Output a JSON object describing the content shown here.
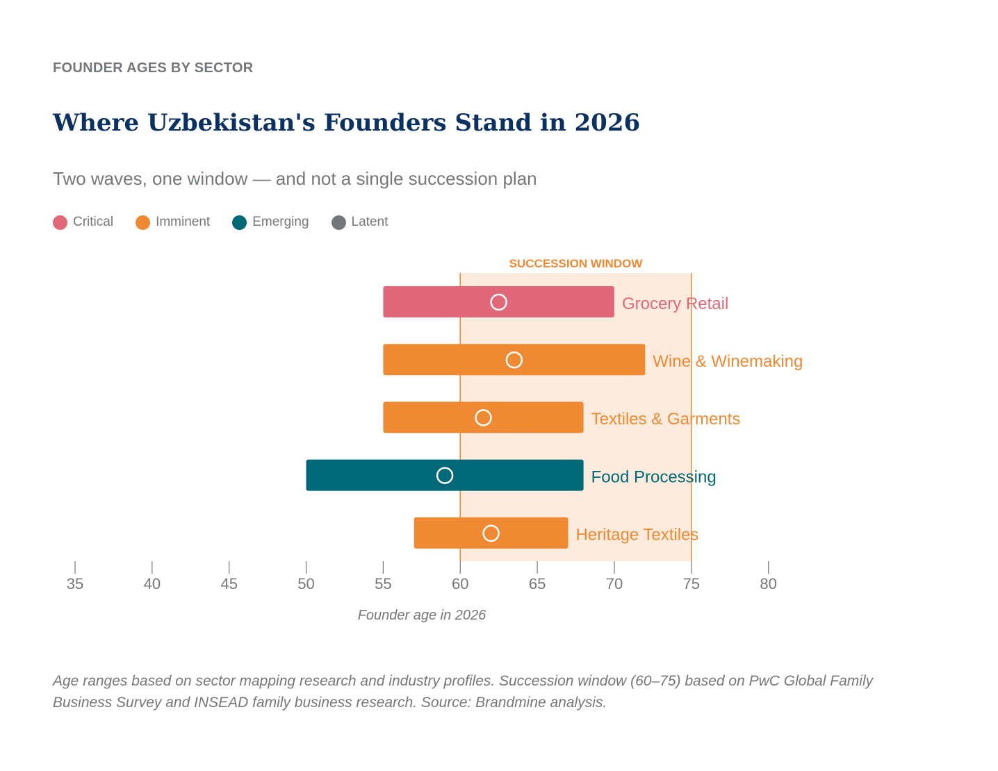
{
  "header": {
    "eyebrow": "FOUNDER AGES BY SECTOR",
    "title": "Where Uzbekistan's Founders Stand in 2026",
    "subtitle": "Two waves, one window — and not a single succession plan"
  },
  "legend": [
    {
      "label": "Critical",
      "color": "#e06878"
    },
    {
      "label": "Imminent",
      "color": "#ef8a33"
    },
    {
      "label": "Emerging",
      "color": "#006876"
    },
    {
      "label": "Latent",
      "color": "#75787b"
    }
  ],
  "chart_data": {
    "type": "range-bar",
    "title": "Where Uzbekistan's Founders Stand in 2026",
    "xlabel": "Founder age in 2026",
    "xlim": [
      35,
      80
    ],
    "xticks": [
      "35",
      "40",
      "45",
      "50",
      "55",
      "60",
      "65",
      "70",
      "75",
      "80"
    ],
    "grid": false,
    "legend_position": "top-left",
    "succession_window": {
      "label": "SUCCESSION WINDOW",
      "start": 60,
      "end": 75
    },
    "series": [
      {
        "name": "Grocery Retail",
        "min": 55,
        "max": 70,
        "median": 62.5,
        "category": "Critical"
      },
      {
        "name": "Wine & Winemaking",
        "min": 55,
        "max": 72,
        "median": 63.5,
        "category": "Imminent"
      },
      {
        "name": "Textiles & Garments",
        "min": 55,
        "max": 68,
        "median": 61.5,
        "category": "Imminent"
      },
      {
        "name": "Food Processing",
        "min": 50,
        "max": 68,
        "median": 59,
        "category": "Emerging"
      },
      {
        "name": "Heritage Textiles",
        "min": 57,
        "max": 67,
        "median": 62,
        "category": "Imminent"
      }
    ]
  },
  "colors": {
    "Critical": "#e06878",
    "Imminent": "#ef8a33",
    "Emerging": "#006876",
    "Latent": "#75787b",
    "window_fill": "#fdebdd",
    "window_line": "#ef8a33",
    "axis": "#75787b"
  },
  "footnote": "Age ranges based on sector mapping research and industry profiles. Succession window (60–75) based on PwC Global Family Business Survey and INSEAD family business research. Source: Brandmine analysis."
}
